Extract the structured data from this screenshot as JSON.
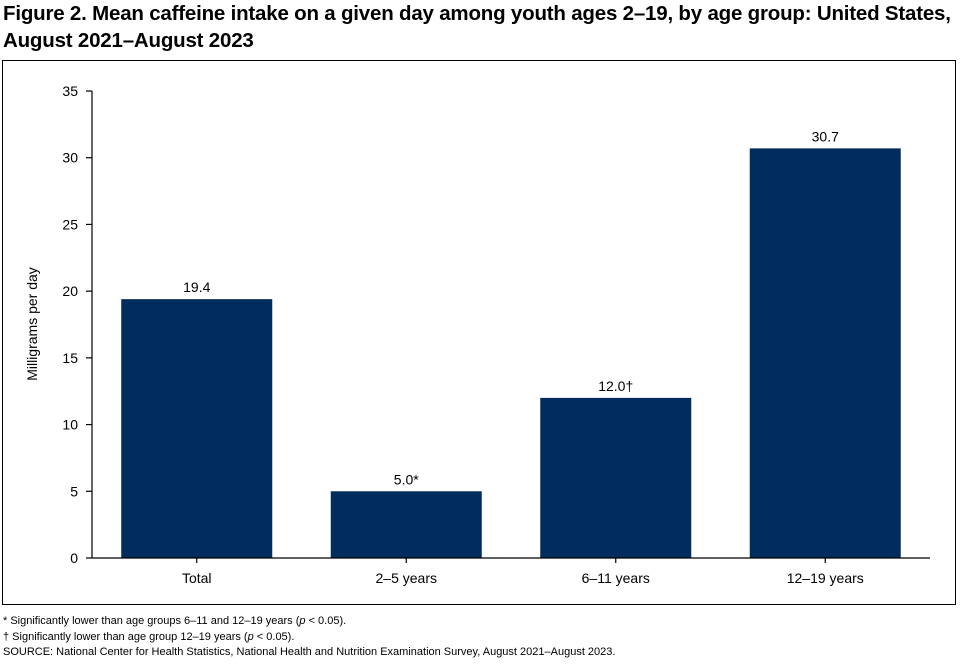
{
  "title": "Figure 2. Mean caffeine intake on a given day among youth ages 2–19, by age group: United States, August 2021–August 2023",
  "colors": {
    "bar": "#002d5d",
    "axis": "#000000"
  },
  "chart_data": {
    "type": "bar",
    "categories": [
      "Total",
      "2–5 years",
      "6–11 years",
      "12–19 years"
    ],
    "values": [
      19.4,
      5.0,
      12.0,
      30.7
    ],
    "data_labels": [
      "19.4",
      "5.0*",
      "12.0†",
      "30.7"
    ],
    "xlabel": "",
    "ylabel": "Milligrams per day",
    "ylim": [
      0,
      35
    ],
    "yticks": [
      0,
      5,
      10,
      15,
      20,
      25,
      30,
      35
    ],
    "grid": false,
    "legend": "none"
  },
  "footnotes": {
    "note1_pre": "* Significantly lower than age groups 6–11 and 12–19 years (",
    "note1_p": "p",
    "note1_post": " < 0.05).",
    "note2_pre": "† Significantly lower than age group 12–19 years (",
    "note2_p": "p",
    "note2_post": " < 0.05).",
    "source": "SOURCE: National Center for Health Statistics, National Health and Nutrition Examination Survey, August 2021–August 2023."
  }
}
